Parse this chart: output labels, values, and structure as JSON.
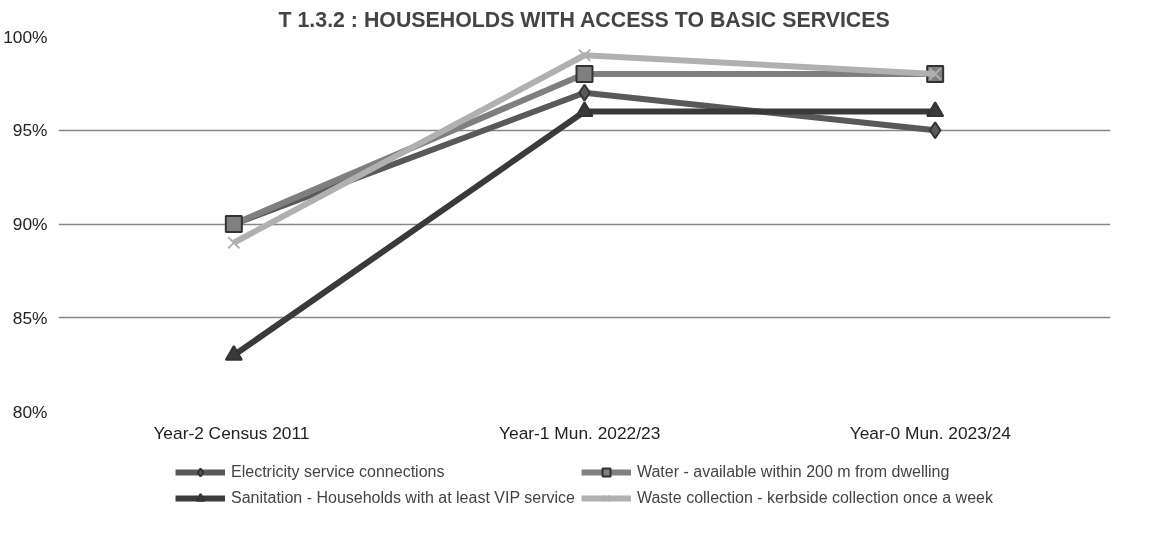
{
  "chart_data": {
    "type": "line",
    "title": "T 1.3.2 : HOUSEHOLDS WITH ACCESS TO BASIC SERVICES",
    "categories": [
      "Year-2  Census 2011",
      "Year-1   Mun. 2022/23",
      "Year-0   Mun. 2023/24"
    ],
    "ylim": [
      80,
      100
    ],
    "yticks": [
      {
        "value": 80,
        "label": "80%"
      },
      {
        "value": 85,
        "label": "85%"
      },
      {
        "value": 90,
        "label": "90%"
      },
      {
        "value": 95,
        "label": "95%"
      },
      {
        "value": 100,
        "label": "100%"
      }
    ],
    "grid": "y",
    "legend": "bottom",
    "line_style": "solid",
    "series": [
      {
        "name": "Electricity service connections",
        "color": "#595959",
        "marker": "diamond",
        "values": [
          90,
          97,
          95
        ]
      },
      {
        "name": "Water - available within 200 m from dwelling",
        "color": "#7f7f7f",
        "marker": "square",
        "values": [
          90,
          98,
          98
        ]
      },
      {
        "name": "Sanitation - Households with at least VIP service",
        "color": "#3a3a3a",
        "marker": "triangle",
        "values": [
          83,
          96,
          96
        ]
      },
      {
        "name": "Waste collection - kerbside collection once a week",
        "color": "#b0b0b0",
        "marker": "cross",
        "values": [
          89,
          99,
          98
        ]
      }
    ]
  }
}
